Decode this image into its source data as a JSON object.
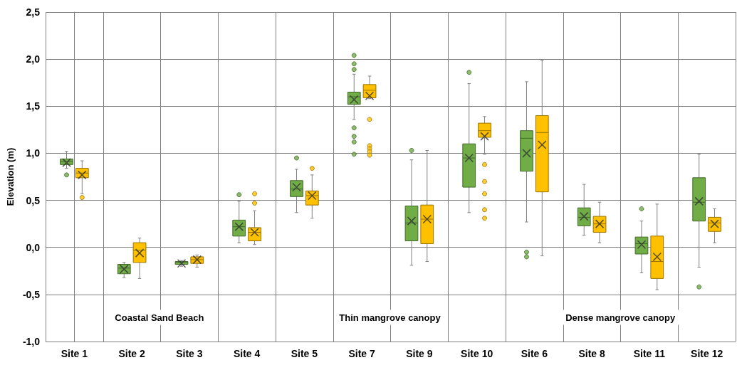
{
  "chart_data": {
    "type": "box",
    "ylabel": "Elevation (m)",
    "categories": [
      "Site 1",
      "Site 2",
      "Site 3",
      "Site 4",
      "Site 5",
      "Site 7",
      "Site 9",
      "Site 10",
      "Site 6",
      "Site 8",
      "Site 11",
      "Site 12"
    ],
    "ylim": [
      -1,
      2.5
    ],
    "yticks": [
      {
        "value": -1,
        "label": "-1,0"
      },
      {
        "value": -0.5,
        "label": "-0,5"
      },
      {
        "value": 0,
        "label": "0,0"
      },
      {
        "value": 0.5,
        "label": "0,5"
      },
      {
        "value": 1,
        "label": "1,0"
      },
      {
        "value": 1.5,
        "label": "1,5"
      },
      {
        "value": 2,
        "label": "2,0"
      },
      {
        "value": 2.5,
        "label": "2,5"
      }
    ],
    "grid": true,
    "annotations": [
      "Coastal Sand Beach",
      "Thin mangrove canopy",
      "Dense mangrove canopy"
    ],
    "series": [
      {
        "color": "#70ad47",
        "boxes": [
          {
            "low": 0.84,
            "q1": 0.88,
            "median": 0.91,
            "q3": 0.94,
            "high": 1.02,
            "mean": 0.9,
            "outliers": [
              0.77
            ]
          },
          {
            "low": -0.32,
            "q1": -0.28,
            "median": -0.22,
            "q3": -0.18,
            "high": -0.16,
            "mean": -0.23
          },
          {
            "low": -0.2,
            "q1": -0.18,
            "median": -0.16,
            "q3": -0.15,
            "high": -0.14,
            "mean": -0.17
          },
          {
            "low": 0.05,
            "q1": 0.12,
            "median": 0.22,
            "q3": 0.29,
            "high": 0.49,
            "mean": 0.22,
            "outliers": [
              0.56
            ]
          },
          {
            "low": 0.37,
            "q1": 0.54,
            "median": 0.62,
            "q3": 0.71,
            "high": 0.83,
            "mean": 0.64,
            "outliers": [
              0.95
            ]
          },
          {
            "low": 1.36,
            "q1": 1.52,
            "median": 1.6,
            "q3": 1.65,
            "high": 1.84,
            "mean": 1.57,
            "outliers": [
              2.04,
              1.95,
              1.89,
              1.27,
              1.18,
              1.12,
              0.99
            ]
          },
          {
            "low": -0.19,
            "q1": 0.07,
            "median": 0.26,
            "q3": 0.44,
            "high": 0.93,
            "mean": 0.28,
            "outliers": [
              1.03
            ]
          },
          {
            "low": 0.37,
            "q1": 0.64,
            "median": 0.95,
            "q3": 1.1,
            "high": 1.74,
            "mean": 0.95,
            "outliers": [
              1.86
            ]
          },
          {
            "low": 0.27,
            "q1": 0.81,
            "median": 1.16,
            "q3": 1.24,
            "high": 1.76,
            "mean": 1.0,
            "outliers": [
              -0.05,
              -0.1
            ]
          },
          {
            "low": 0.13,
            "q1": 0.23,
            "median": 0.32,
            "q3": 0.42,
            "high": 0.67,
            "mean": 0.33
          },
          {
            "low": -0.27,
            "q1": -0.07,
            "median": 0.04,
            "q3": 0.11,
            "high": 0.28,
            "mean": 0.03,
            "outliers": [
              0.41
            ]
          },
          {
            "low": -0.21,
            "q1": 0.28,
            "median": 0.48,
            "q3": 0.74,
            "high": 0.99,
            "mean": 0.49,
            "outliers": [
              -0.42
            ]
          }
        ]
      },
      {
        "color": "#ffc000",
        "boxes": [
          {
            "low": 0.57,
            "q1": 0.74,
            "median": 0.79,
            "q3": 0.84,
            "high": 0.92,
            "mean": 0.77,
            "outliers": [
              0.53
            ]
          },
          {
            "low": -0.33,
            "q1": -0.16,
            "median": -0.03,
            "q3": 0.05,
            "high": 0.1,
            "mean": -0.06
          },
          {
            "low": -0.21,
            "q1": -0.17,
            "median": -0.13,
            "q3": -0.1,
            "high": -0.08,
            "mean": -0.13
          },
          {
            "low": 0.03,
            "q1": 0.07,
            "median": 0.16,
            "q3": 0.21,
            "high": 0.39,
            "mean": 0.16,
            "outliers": [
              0.47,
              0.57
            ]
          },
          {
            "low": 0.31,
            "q1": 0.45,
            "median": 0.55,
            "q3": 0.6,
            "high": 0.77,
            "mean": 0.55,
            "outliers": [
              0.84
            ]
          },
          {
            "low": 1.58,
            "q1": 1.59,
            "median": 1.67,
            "q3": 1.73,
            "high": 1.82,
            "mean": 1.61,
            "outliers": [
              1.36,
              1.08,
              1.05,
              1.02,
              0.98
            ]
          },
          {
            "low": -0.15,
            "q1": 0.04,
            "median": 0.3,
            "q3": 0.45,
            "high": 1.03,
            "mean": 0.3
          },
          {
            "low": 0.99,
            "q1": 1.17,
            "median": 1.24,
            "q3": 1.32,
            "high": 1.39,
            "mean": 1.18,
            "outliers": [
              0.88,
              0.7,
              0.57,
              0.4,
              0.31
            ]
          },
          {
            "low": -0.09,
            "q1": 0.59,
            "median": 1.22,
            "q3": 1.4,
            "high": 1.99,
            "mean": 1.09
          },
          {
            "low": 0.05,
            "q1": 0.16,
            "median": 0.25,
            "q3": 0.33,
            "high": 0.48,
            "mean": 0.25
          },
          {
            "low": -0.45,
            "q1": -0.33,
            "median": -0.15,
            "q3": 0.12,
            "high": 0.46,
            "mean": -0.1
          },
          {
            "low": 0.05,
            "q1": 0.17,
            "median": 0.26,
            "q3": 0.32,
            "high": 0.41,
            "mean": 0.25
          }
        ]
      }
    ]
  }
}
